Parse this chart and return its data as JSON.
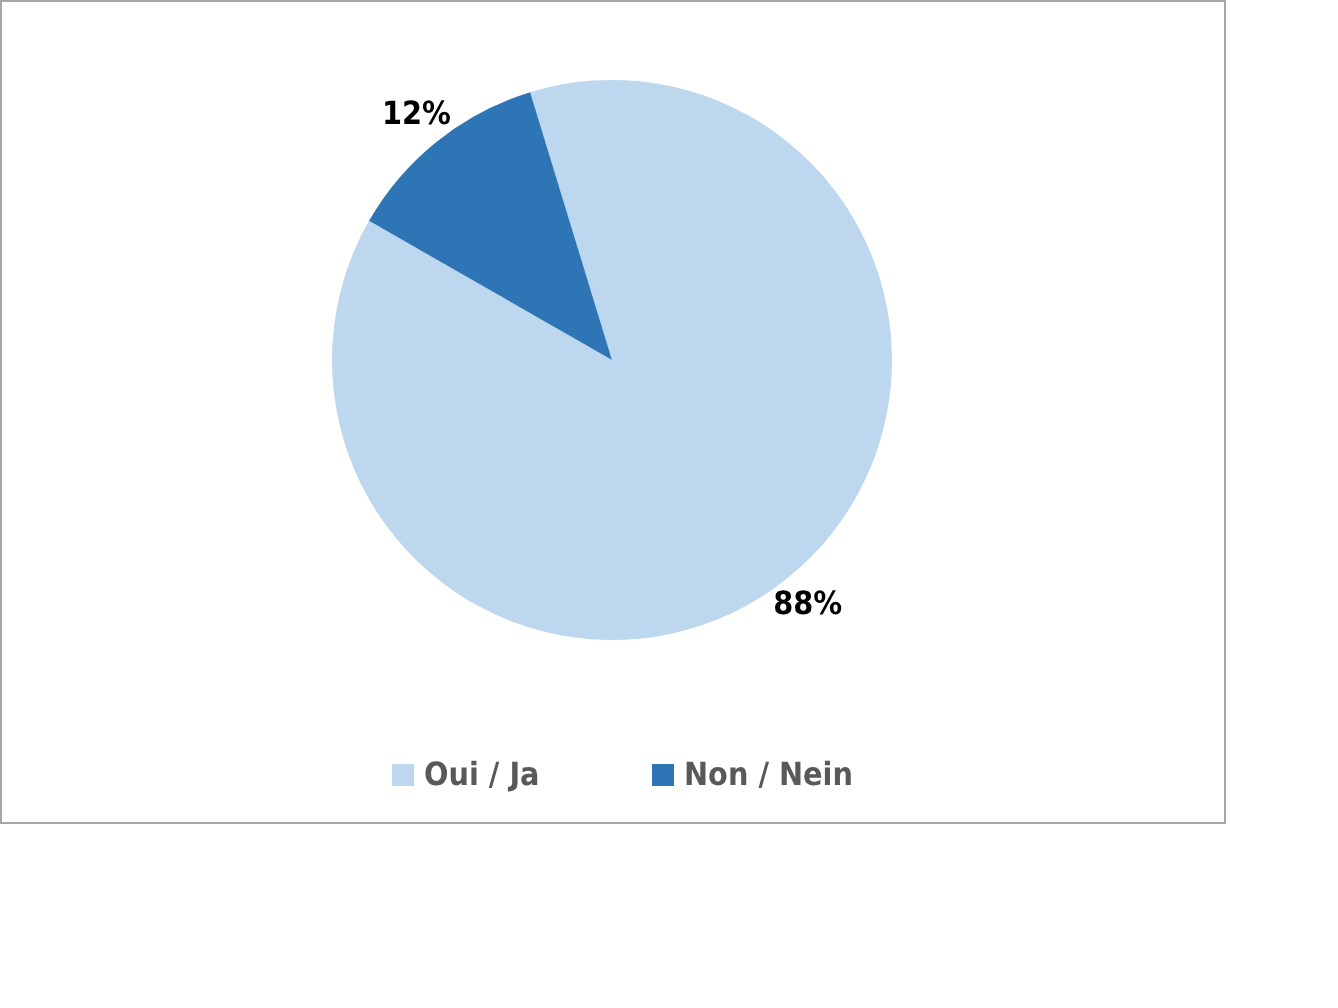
{
  "chart_data": {
    "type": "pie",
    "categories": [
      "Oui / Ja",
      "Non / Nein"
    ],
    "values": [
      88,
      12
    ],
    "colors": [
      "#bdd7ee",
      "#2e75b6"
    ],
    "value_labels": [
      "88%",
      "12%"
    ],
    "legend": "bottom"
  }
}
